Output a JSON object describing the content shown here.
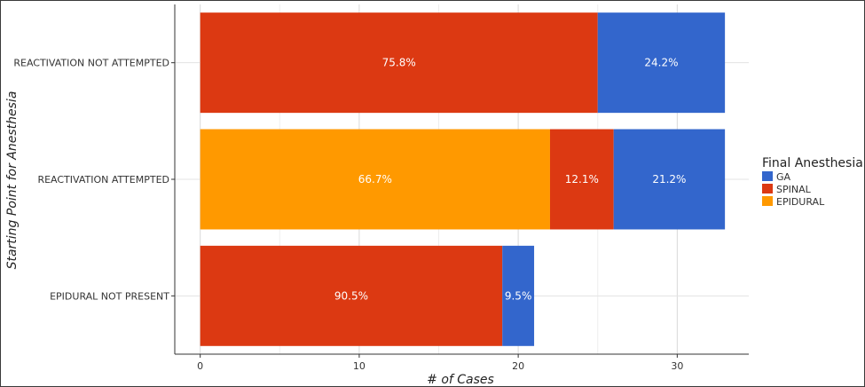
{
  "chart_data": {
    "type": "bar",
    "orientation": "horizontal",
    "stacked": true,
    "categories": [
      "REACTIVATION NOT ATTEMPTED",
      "REACTIVATION ATTEMPTED",
      "EPIDURAL NOT PRESENT"
    ],
    "series": [
      {
        "name": "EPIDURAL",
        "color": "#FF9900",
        "values": [
          0,
          22,
          0
        ],
        "labels": [
          "",
          "66.7%",
          ""
        ]
      },
      {
        "name": "SPINAL",
        "color": "#DC3912",
        "values": [
          25,
          4,
          19
        ],
        "labels": [
          "75.8%",
          "12.1%",
          "90.5%"
        ]
      },
      {
        "name": "GA",
        "color": "#3366CC",
        "values": [
          8,
          7,
          2
        ],
        "labels": [
          "24.2%",
          "21.2%",
          "9.5%"
        ]
      }
    ],
    "xlabel": "# of Cases",
    "ylabel": "Starting Point for Anesthesia",
    "xlim": [
      -1.6,
      34.5
    ],
    "xticks": [
      0,
      10,
      20,
      30
    ],
    "grid": true,
    "legend": {
      "title": "Final Anesthesia",
      "position": "right",
      "order": [
        "GA",
        "SPINAL",
        "EPIDURAL"
      ]
    }
  }
}
